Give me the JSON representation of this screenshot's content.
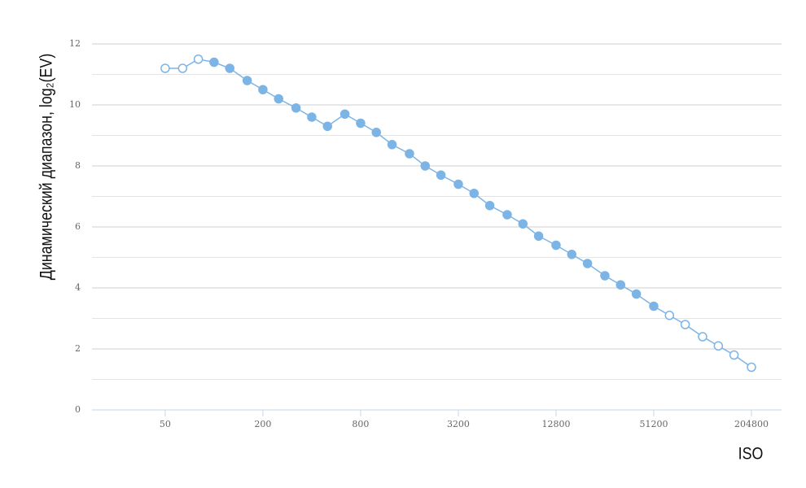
{
  "chart_data": {
    "type": "line",
    "y_label": "Динамический диапазон, log₂(EV)",
    "x_label": "ISO",
    "x": [
      50,
      64,
      80,
      100,
      125,
      160,
      200,
      250,
      320,
      400,
      500,
      640,
      800,
      1000,
      1250,
      1600,
      2000,
      2500,
      3200,
      4000,
      5000,
      6400,
      8000,
      10000,
      12800,
      16000,
      20000,
      25600,
      32000,
      40000,
      51200,
      64000,
      80000,
      102400,
      128000,
      160000,
      204800
    ],
    "series": [
      {
        "color": "#7db4e6",
        "values": [
          11.2,
          11.2,
          11.5,
          11.4,
          11.2,
          10.8,
          10.5,
          10.2,
          9.9,
          9.6,
          9.3,
          9.7,
          9.4,
          9.1,
          8.7,
          8.4,
          8.0,
          7.7,
          7.4,
          7.1,
          6.7,
          6.4,
          6.1,
          5.7,
          5.4,
          5.1,
          4.8,
          4.4,
          4.1,
          3.8,
          3.4,
          3.1,
          2.8,
          2.4,
          2.1,
          1.8,
          1.4
        ],
        "filled": [
          false,
          false,
          false,
          true,
          true,
          true,
          true,
          true,
          true,
          true,
          true,
          true,
          true,
          true,
          true,
          true,
          true,
          true,
          true,
          true,
          true,
          true,
          true,
          true,
          true,
          true,
          true,
          true,
          true,
          true,
          true,
          false,
          false,
          false,
          false,
          false,
          false
        ]
      }
    ],
    "xscale": "log",
    "xlim": [
      17.7,
      314000
    ],
    "xticks": [
      50,
      200,
      800,
      3200,
      12800,
      51200,
      204800
    ],
    "ylim": [
      0,
      12
    ],
    "yticks": [
      0,
      2,
      4,
      6,
      8,
      10,
      12
    ],
    "grid": true,
    "minor_grid": true
  }
}
